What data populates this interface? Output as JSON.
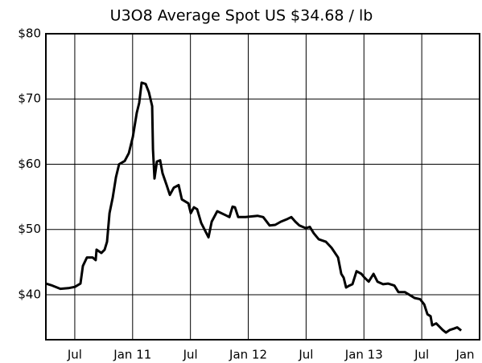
{
  "chart_data": {
    "type": "line",
    "title": "U3O8 Average Spot US $34.68 / lb",
    "color": "#000000",
    "grid": true,
    "xlim": [
      2010.25,
      2014.0
    ],
    "xticks": [
      {
        "value": 2010.5,
        "label": "Jul"
      },
      {
        "value": 2011.0,
        "label": "Jan 11"
      },
      {
        "value": 2011.5,
        "label": "Jul"
      },
      {
        "value": 2012.0,
        "label": "Jan 12"
      },
      {
        "value": 2012.5,
        "label": "Jul"
      },
      {
        "value": 2013.0,
        "label": "Jan 13"
      },
      {
        "value": 2013.5,
        "label": "Jul"
      },
      {
        "value": 2014.0,
        "label": "Jan"
      }
    ],
    "ylim": [
      33.1,
      80
    ],
    "yticks": [
      {
        "value": 40,
        "label": "$40"
      },
      {
        "value": 50,
        "label": "$50"
      },
      {
        "value": 60,
        "label": "$60"
      },
      {
        "value": 70,
        "label": "$70"
      },
      {
        "value": 80,
        "label": "$80"
      }
    ],
    "x": [
      2010.25,
      2010.306,
      2010.375,
      2010.445,
      2010.501,
      2010.549,
      2010.57,
      2010.605,
      2010.654,
      2010.681,
      2010.688,
      2010.73,
      2010.758,
      2010.779,
      2010.8,
      2010.828,
      2010.856,
      2010.883,
      2010.932,
      2010.967,
      2011.002,
      2011.036,
      2011.057,
      2011.078,
      2011.113,
      2011.141,
      2011.169,
      2011.176,
      2011.189,
      2011.21,
      2011.238,
      2011.259,
      2011.294,
      2011.322,
      2011.356,
      2011.398,
      2011.426,
      2011.482,
      2011.503,
      2011.53,
      2011.558,
      2011.593,
      2011.656,
      2011.684,
      2011.732,
      2011.802,
      2011.837,
      2011.864,
      2011.885,
      2011.913,
      2011.976,
      2012.08,
      2012.129,
      2012.185,
      2012.233,
      2012.282,
      2012.338,
      2012.372,
      2012.407,
      2012.442,
      2012.498,
      2012.532,
      2012.567,
      2012.609,
      2012.672,
      2012.72,
      2012.776,
      2012.804,
      2012.825,
      2012.846,
      2012.874,
      2012.901,
      2012.936,
      2012.978,
      2013.006,
      2013.041,
      2013.083,
      2013.117,
      2013.166,
      2013.208,
      2013.263,
      2013.298,
      2013.354,
      2013.402,
      2013.437,
      2013.486,
      2013.521,
      2013.549,
      2013.576,
      2013.59,
      2013.625,
      2013.681,
      2013.709,
      2013.743,
      2013.778,
      2013.806,
      2013.841
    ],
    "values": [
      41.7,
      41.4,
      40.9,
      41.0,
      41.2,
      41.7,
      44.4,
      45.7,
      45.7,
      45.3,
      46.9,
      46.4,
      46.9,
      48.1,
      52.5,
      54.9,
      58.0,
      60.0,
      60.5,
      61.7,
      64.2,
      67.9,
      69.4,
      72.5,
      72.3,
      71.0,
      68.9,
      62.3,
      57.8,
      60.4,
      60.6,
      58.6,
      56.8,
      55.3,
      56.4,
      56.8,
      54.6,
      54.0,
      52.5,
      53.4,
      53.1,
      51.0,
      48.8,
      51.2,
      52.8,
      52.2,
      51.9,
      53.5,
      53.4,
      51.9,
      51.9,
      52.1,
      51.9,
      50.6,
      50.7,
      51.2,
      51.6,
      51.9,
      51.2,
      50.6,
      50.2,
      50.4,
      49.4,
      48.5,
      48.1,
      47.2,
      45.7,
      43.2,
      42.6,
      41.1,
      41.4,
      41.6,
      43.6,
      43.2,
      42.6,
      42.0,
      43.2,
      42.0,
      41.6,
      41.7,
      41.4,
      40.4,
      40.4,
      39.9,
      39.5,
      39.3,
      38.5,
      37.0,
      36.7,
      35.3,
      35.6,
      34.6,
      34.2,
      34.6,
      34.8,
      35.0,
      34.5
    ]
  }
}
